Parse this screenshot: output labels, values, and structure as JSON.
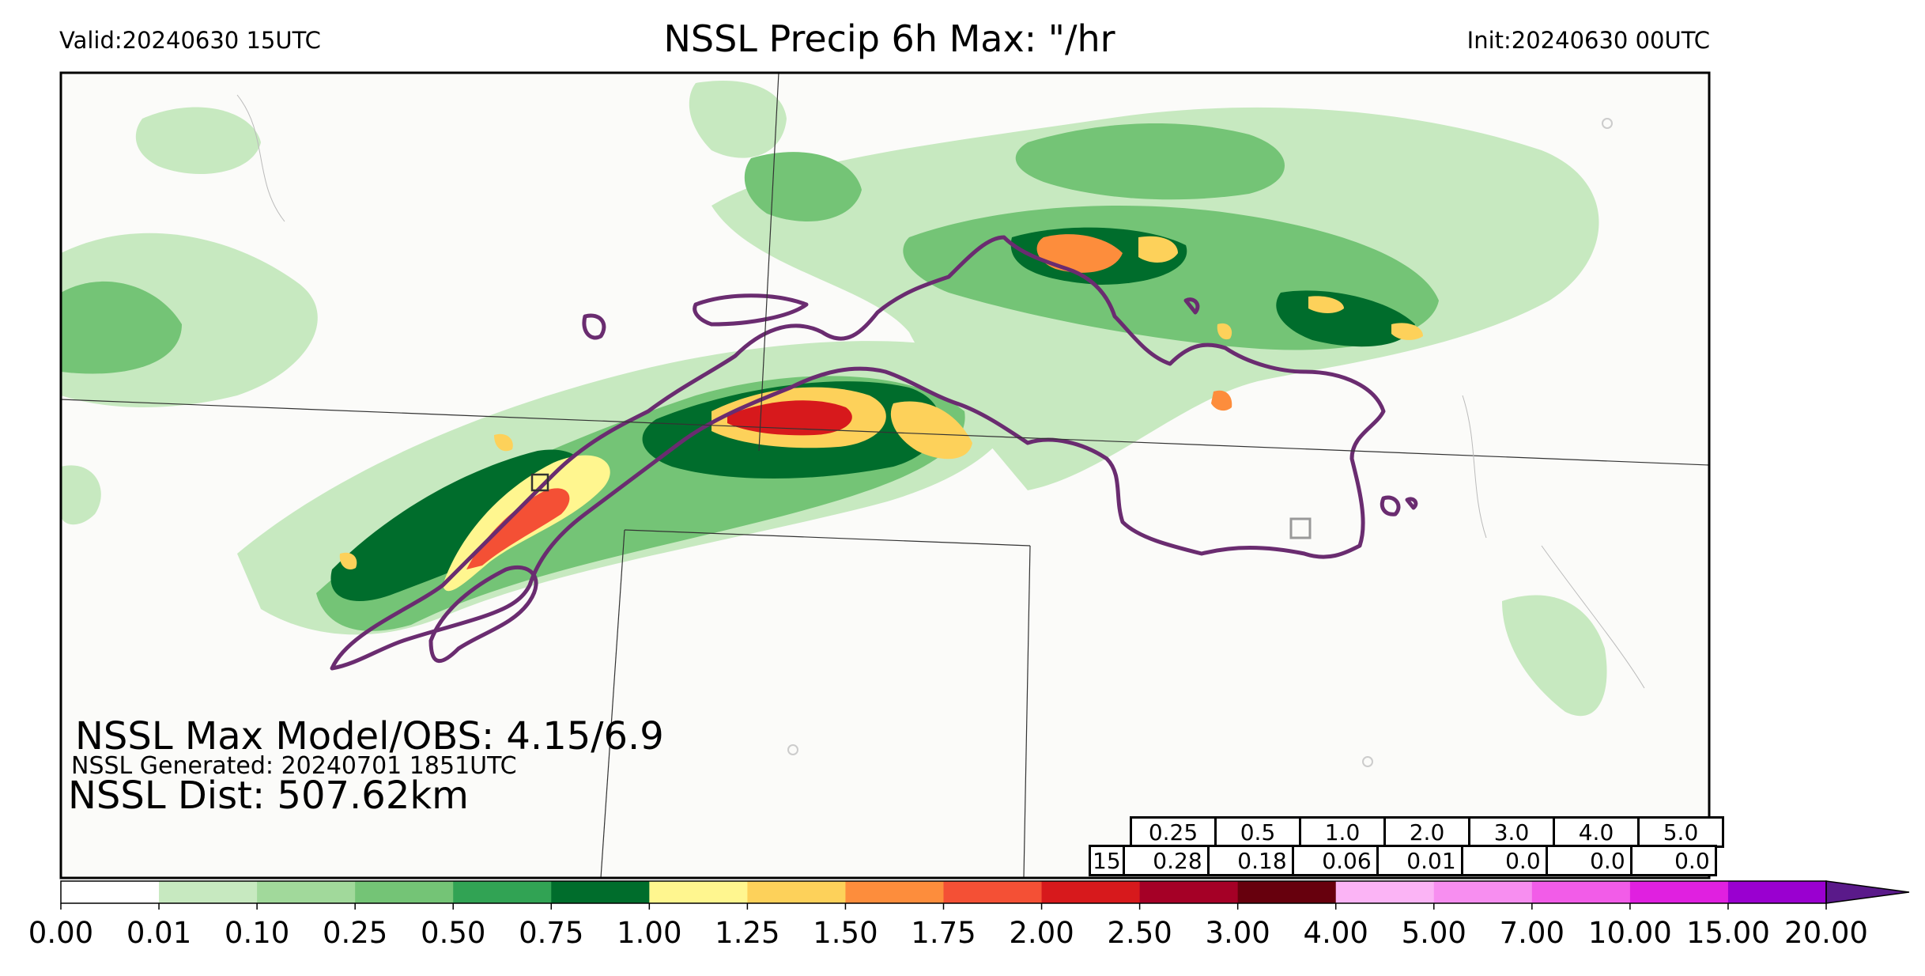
{
  "header": {
    "valid": "Valid:20240630 15UTC",
    "title": "NSSL Precip 6h Max: \"/hr",
    "init": "Init:20240630 00UTC"
  },
  "stats": {
    "max_model_obs": "NSSL Max Model/OBS: 4.15/6.9",
    "generated": "NSSL Generated: 20240701 1851UTC",
    "distance": "NSSL Dist: 507.62km"
  },
  "threshold_table": {
    "thresholds": [
      "0.25",
      "0.5",
      "1.0",
      "2.0",
      "3.0",
      "4.0",
      "5.0"
    ],
    "row_label": "15",
    "values": [
      "0.28",
      "0.18",
      "0.06",
      "0.01",
      "0.0",
      "0.0",
      "0.0"
    ]
  },
  "colorbar": {
    "ticks": [
      "0.00",
      "0.01",
      "0.10",
      "0.25",
      "0.50",
      "0.75",
      "1.00",
      "1.25",
      "1.50",
      "1.75",
      "2.00",
      "2.50",
      "3.00",
      "4.00",
      "5.00",
      "7.00",
      "10.00",
      "15.00",
      "20.00"
    ],
    "colors": [
      "#ffffff",
      "#c7e9c0",
      "#a1d99b",
      "#74c476",
      "#31a354",
      "#006d2c",
      "#fff68f",
      "#fdd15a",
      "#fd8d3c",
      "#f45035",
      "#d7191c",
      "#a50026",
      "#67000d",
      "#fbb4f5",
      "#f78ef0",
      "#f25ce8",
      "#e020e0",
      "#9a00d0"
    ],
    "extend_color": "#5a1a8a"
  },
  "map": {
    "observed_contour_color": "#6a2c70",
    "land_background": "#fbfbf9"
  }
}
